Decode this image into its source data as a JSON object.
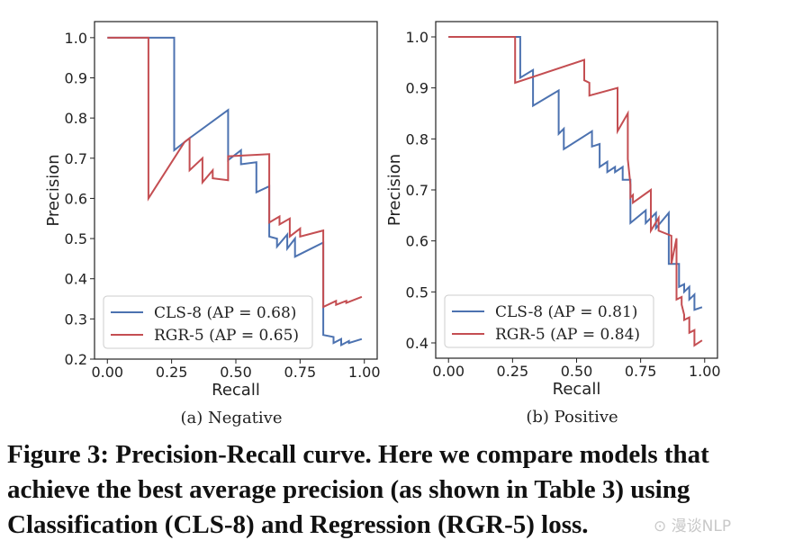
{
  "chart_data": [
    {
      "type": "line",
      "title": "",
      "subcaption": "(a) Negative",
      "xlabel": "Recall",
      "ylabel": "Precision",
      "xlim": [
        -0.05,
        1.05
      ],
      "ylim": [
        0.2,
        1.04
      ],
      "xticks": [
        0.0,
        0.25,
        0.5,
        0.75,
        1.0
      ],
      "xtick_labels": [
        "0.00",
        "0.25",
        "0.50",
        "0.75",
        "1.00"
      ],
      "yticks": [
        0.2,
        0.3,
        0.4,
        0.5,
        0.6,
        0.7,
        0.8,
        0.9,
        1.0
      ],
      "ytick_labels": [
        "0.2",
        "0.3",
        "0.4",
        "0.5",
        "0.6",
        "0.7",
        "0.8",
        "0.9",
        "1.0"
      ],
      "legend_position": "lower-left",
      "series": [
        {
          "name": "CLS-8 (AP = 0.68)",
          "color": "#4c72b0",
          "x": [
            0.0,
            0.26,
            0.26,
            0.32,
            0.47,
            0.47,
            0.52,
            0.52,
            0.58,
            0.58,
            0.63,
            0.63,
            0.66,
            0.66,
            0.7,
            0.7,
            0.73,
            0.73,
            0.84,
            0.84,
            0.88,
            0.88,
            0.91,
            0.91,
            0.94,
            0.94,
            0.99
          ],
          "y": [
            1.0,
            1.0,
            0.72,
            0.75,
            0.82,
            0.695,
            0.72,
            0.685,
            0.69,
            0.615,
            0.63,
            0.505,
            0.5,
            0.48,
            0.51,
            0.475,
            0.5,
            0.455,
            0.49,
            0.26,
            0.255,
            0.24,
            0.25,
            0.235,
            0.245,
            0.24,
            0.25
          ]
        },
        {
          "name": "RGR-5 (AP = 0.65)",
          "color": "#c44e52",
          "x": [
            0.0,
            0.16,
            0.16,
            0.3,
            0.32,
            0.32,
            0.37,
            0.37,
            0.41,
            0.41,
            0.47,
            0.47,
            0.63,
            0.63,
            0.67,
            0.67,
            0.71,
            0.71,
            0.75,
            0.75,
            0.84,
            0.84,
            0.89,
            0.89,
            0.93,
            0.93,
            0.99
          ],
          "y": [
            1.0,
            1.0,
            0.6,
            0.74,
            0.75,
            0.67,
            0.7,
            0.64,
            0.67,
            0.65,
            0.645,
            0.705,
            0.71,
            0.54,
            0.555,
            0.535,
            0.55,
            0.505,
            0.525,
            0.505,
            0.52,
            0.33,
            0.345,
            0.335,
            0.345,
            0.34,
            0.355
          ]
        }
      ]
    },
    {
      "type": "line",
      "title": "",
      "subcaption": "(b) Positive",
      "xlabel": "Recall",
      "ylabel": "Precision",
      "xlim": [
        -0.05,
        1.05
      ],
      "ylim": [
        0.37,
        1.03
      ],
      "xticks": [
        0.0,
        0.25,
        0.5,
        0.75,
        1.0
      ],
      "xtick_labels": [
        "0.00",
        "0.25",
        "0.50",
        "0.75",
        "1.00"
      ],
      "yticks": [
        0.4,
        0.5,
        0.6,
        0.7,
        0.8,
        0.9,
        1.0
      ],
      "ytick_labels": [
        "0.4",
        "0.5",
        "0.6",
        "0.7",
        "0.8",
        "0.9",
        "1.0"
      ],
      "legend_position": "lower-left",
      "series": [
        {
          "name": "CLS-8 (AP = 0.81)",
          "color": "#4c72b0",
          "x": [
            0.0,
            0.28,
            0.28,
            0.33,
            0.33,
            0.43,
            0.43,
            0.45,
            0.45,
            0.56,
            0.56,
            0.59,
            0.59,
            0.62,
            0.62,
            0.65,
            0.65,
            0.68,
            0.68,
            0.71,
            0.71,
            0.77,
            0.77,
            0.81,
            0.81,
            0.86,
            0.86,
            0.9,
            0.9,
            0.92,
            0.92,
            0.94,
            0.94,
            0.96,
            0.96,
            0.99
          ],
          "y": [
            1.0,
            1.0,
            0.92,
            0.935,
            0.865,
            0.895,
            0.81,
            0.82,
            0.78,
            0.815,
            0.785,
            0.79,
            0.745,
            0.755,
            0.735,
            0.745,
            0.735,
            0.745,
            0.72,
            0.72,
            0.635,
            0.66,
            0.635,
            0.655,
            0.625,
            0.655,
            0.555,
            0.555,
            0.51,
            0.515,
            0.5,
            0.51,
            0.485,
            0.495,
            0.465,
            0.47
          ]
        },
        {
          "name": "RGR-5 (AP = 0.84)",
          "color": "#c44e52",
          "x": [
            0.0,
            0.26,
            0.26,
            0.53,
            0.53,
            0.55,
            0.55,
            0.66,
            0.66,
            0.7,
            0.7,
            0.71,
            0.71,
            0.72,
            0.72,
            0.79,
            0.79,
            0.82,
            0.82,
            0.87,
            0.87,
            0.89,
            0.89,
            0.91,
            0.91,
            0.92,
            0.92,
            0.94,
            0.94,
            0.96,
            0.96,
            0.99
          ],
          "y": [
            1.0,
            1.0,
            0.91,
            0.955,
            0.915,
            0.91,
            0.885,
            0.9,
            0.815,
            0.85,
            0.76,
            0.71,
            0.685,
            0.69,
            0.675,
            0.7,
            0.62,
            0.645,
            0.62,
            0.61,
            0.555,
            0.605,
            0.485,
            0.49,
            0.475,
            0.455,
            0.445,
            0.45,
            0.42,
            0.425,
            0.395,
            0.405
          ]
        }
      ]
    }
  ],
  "caption": "Figure 3: Precision-Recall curve. Here we compare models that achieve the best average precision (as shown in Table 3) using Classification (CLS-8) and Regression (RGR-5) loss.",
  "watermark": "⊙ 漫谈NLP"
}
